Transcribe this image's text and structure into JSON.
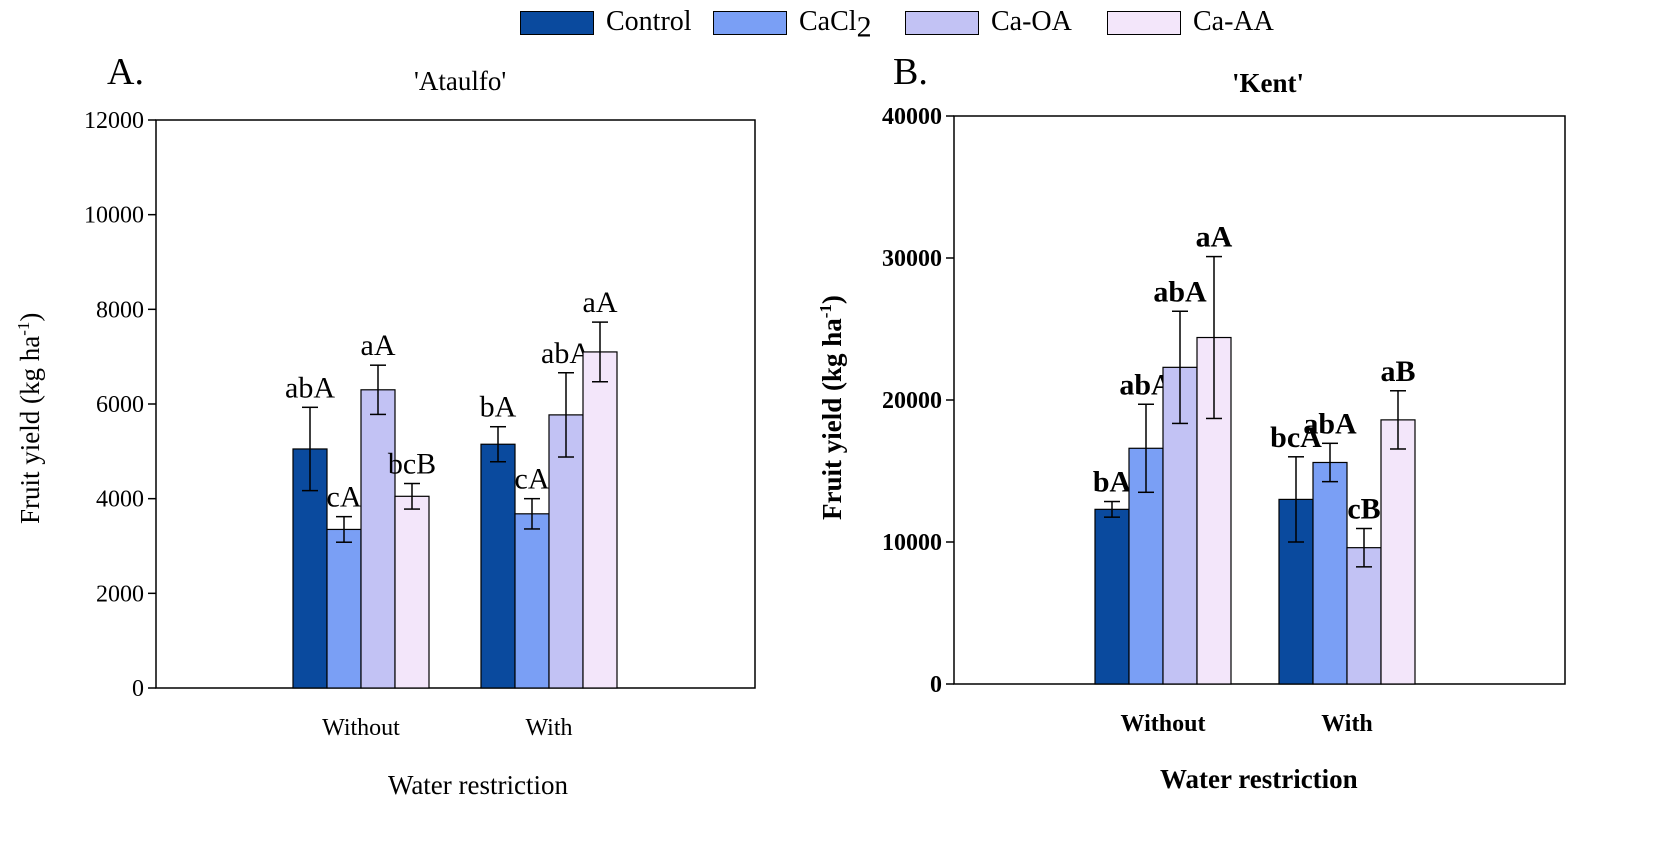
{
  "legend": {
    "items": [
      {
        "label": "Control",
        "color": "#0a4a9e"
      },
      {
        "label": "CaCl",
        "sub": "2",
        "color": "#7a9ff5"
      },
      {
        "label": "Ca-OA",
        "color": "#c2c2f4"
      },
      {
        "label": "Ca-AA",
        "color": "#f3e6fa"
      }
    ]
  },
  "chart_data": [
    {
      "type": "bar",
      "panel": "A.",
      "title": "'Ataulfo'",
      "xlabel": "Water restriction",
      "ylabel": "Fruit yield (kg ha",
      "ylabel_sup": "-1",
      "ylabel_end": ")",
      "ylim": [
        0,
        12000
      ],
      "yticks": [
        0,
        2000,
        4000,
        6000,
        8000,
        10000,
        12000
      ],
      "categories": [
        "Without",
        "With"
      ],
      "series": [
        {
          "name": "Control",
          "values": [
            5050,
            5150
          ],
          "errors": [
            880,
            370
          ],
          "letters": [
            "abA",
            "bA"
          ]
        },
        {
          "name": "CaCl2",
          "values": [
            3350,
            3680
          ],
          "errors": [
            270,
            320
          ],
          "letters": [
            "cA",
            "cA"
          ]
        },
        {
          "name": "Ca-OA",
          "values": [
            6300,
            5770
          ],
          "errors": [
            520,
            890
          ],
          "letters": [
            "aA",
            "abA"
          ]
        },
        {
          "name": "Ca-AA",
          "values": [
            4050,
            7100
          ],
          "errors": [
            270,
            630
          ],
          "letters": [
            "bcB",
            "aA"
          ]
        }
      ],
      "bold_labels": false
    },
    {
      "type": "bar",
      "panel": "B.",
      "title": "'Kent'",
      "xlabel": "Water restriction",
      "ylabel": "Fruit yield (kg ha",
      "ylabel_sup": "-1",
      "ylabel_end": ")",
      "ylim": [
        0,
        40000
      ],
      "yticks": [
        0,
        10000,
        20000,
        30000,
        40000
      ],
      "categories": [
        "Without",
        "With"
      ],
      "series": [
        {
          "name": "Control",
          "values": [
            12300,
            13000
          ],
          "errors": [
            550,
            3000
          ],
          "letters": [
            "bA",
            "bcA"
          ]
        },
        {
          "name": "CaCl2",
          "values": [
            16600,
            15600
          ],
          "errors": [
            3100,
            1350
          ],
          "letters": [
            "abA",
            "abA"
          ]
        },
        {
          "name": "Ca-OA",
          "values": [
            22300,
            9600
          ],
          "errors": [
            3950,
            1350
          ],
          "letters": [
            "abA",
            "cB"
          ]
        },
        {
          "name": "Ca-AA",
          "values": [
            24400,
            18600
          ],
          "errors": [
            5700,
            2050
          ],
          "letters": [
            "aA",
            "aB"
          ]
        }
      ],
      "bold_labels": true
    }
  ]
}
